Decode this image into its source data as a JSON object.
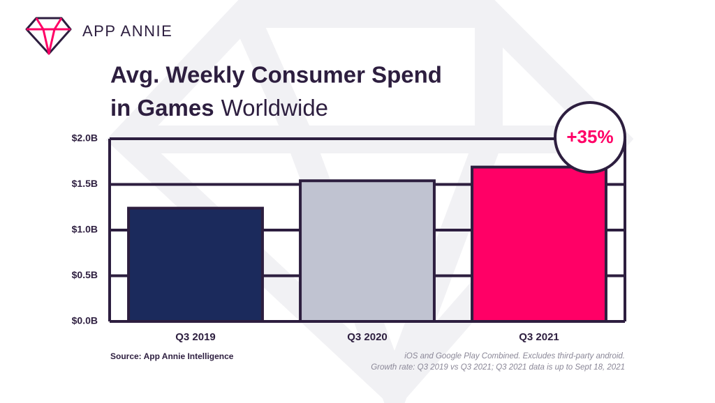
{
  "brand": "APP ANNIE",
  "chart_data": {
    "type": "bar",
    "title": [
      "Avg. Weekly Consumer Spend",
      "in Games"
    ],
    "subtitle": "Worldwide",
    "categories": [
      "Q3 2019",
      "Q3 2020",
      "Q3 2021"
    ],
    "values": [
      1.24,
      1.54,
      1.69
    ],
    "colors": [
      "#1b2a5c",
      "#c0c3d1",
      "#ff0066"
    ],
    "ylim": [
      0,
      2
    ],
    "yticks": [
      {
        "value": 0,
        "label": "$0.0B"
      },
      {
        "value": 0.5,
        "label": "$0.5B"
      },
      {
        "value": 1,
        "label": "$1.0B"
      },
      {
        "value": 1.5,
        "label": "$1.5B"
      },
      {
        "value": 2,
        "label": "$2.0B"
      }
    ],
    "grid": true,
    "annotation": "+35%",
    "source": "Source: App Annie Intelligence",
    "notes": [
      "iOS and Google Play Combined. Excludes third-party android.",
      "Growth rate: Q3 2019 vs Q3 2021; Q3 2021 data is up to Sept 18, 2021"
    ]
  }
}
